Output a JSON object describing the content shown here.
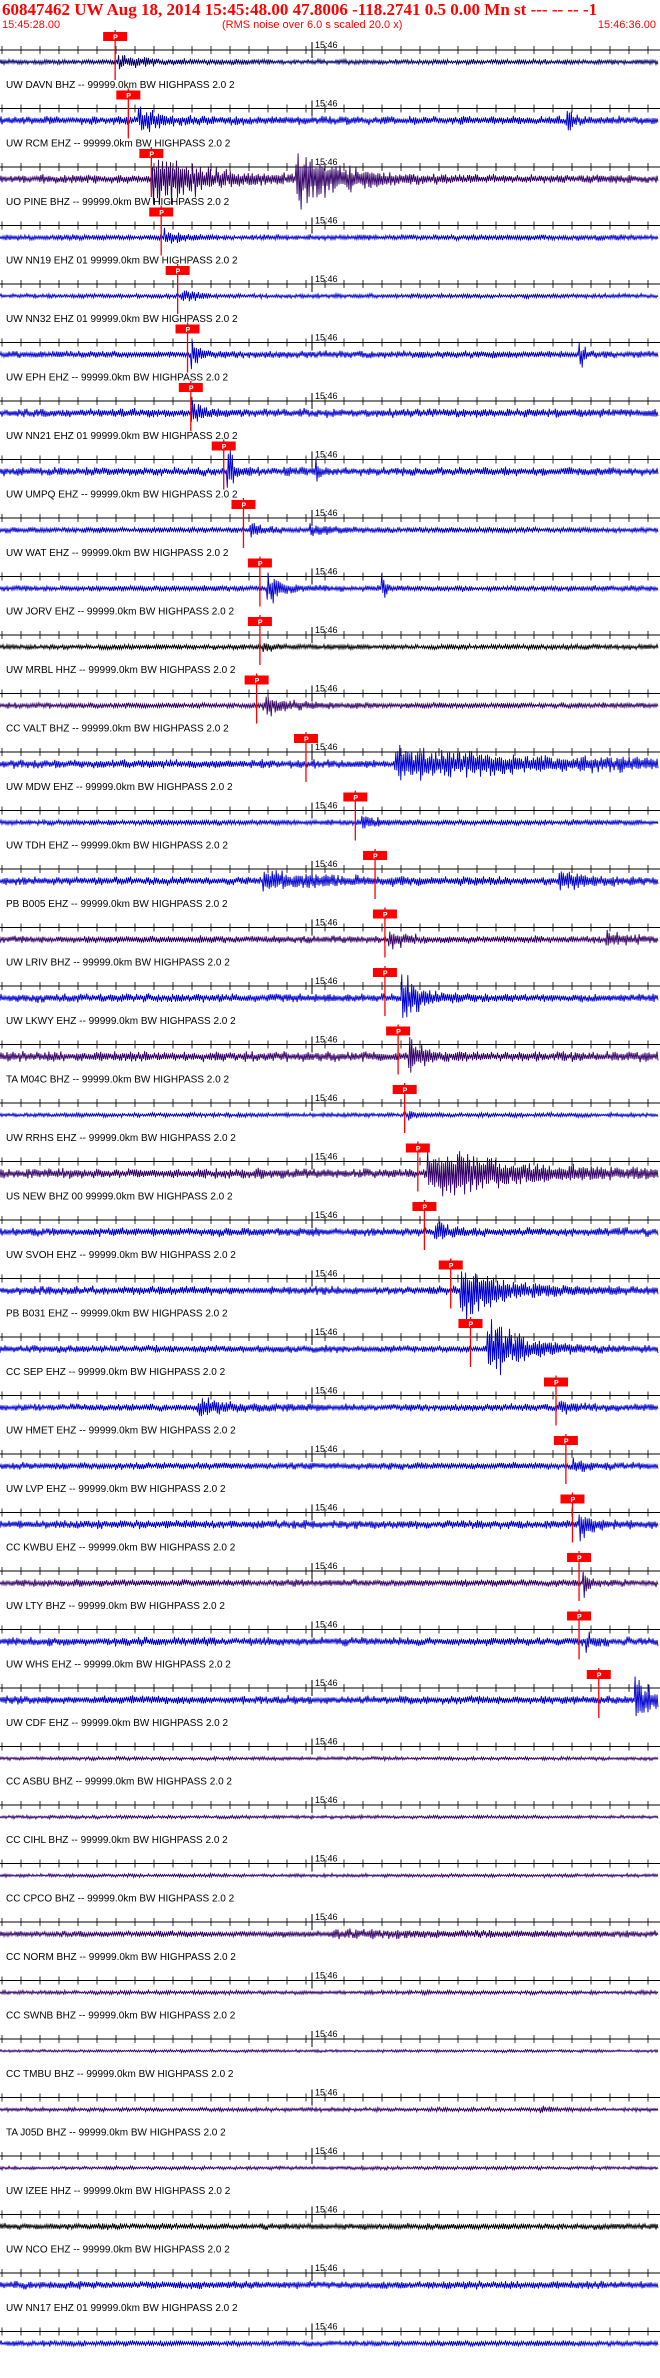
{
  "header": {
    "title": "60847462 UW Aug 18, 2014 15:45:48.00   47.8006 -118.2741  0.5 0.00 Mn st --- -- --  -1",
    "start_time": "15:45:28.00",
    "note": "(RMS noise over 6.0 s scaled 20.0 x)",
    "end_time": "15:46:36.00"
  },
  "chart_data": {
    "type": "line",
    "title": "60847462 UW Aug 18, 2014 15:45:48.00   47.8006 -118.2741  0.5 0.00 Mn st --- -- --  -1",
    "x_range": [
      "15:45:28.00",
      "15:46:36.00"
    ],
    "tick_label": "15:46",
    "pick_box_label": "P",
    "colors": {
      "blue": "#0000cc",
      "navy": "#000066",
      "black": "#000000",
      "indigo": "#330066",
      "pick": "#ff0000",
      "grid": "#000000"
    },
    "traces": [
      {
        "label": "UW DAVN BHZ -- 99999.0km BW  HIGHPASS  2.0  2",
        "color": "navy",
        "amp": 0.18,
        "pick": 0.175,
        "events": [
          {
            "t": 0.18,
            "a": 0.4,
            "d": 0.05
          }
        ]
      },
      {
        "label": "UW RCM EHZ -- 99999.0km BW  HIGHPASS  2.0  2",
        "color": "blue",
        "amp": 0.3,
        "pick": 0.195,
        "events": [
          {
            "t": 0.21,
            "a": 0.9,
            "d": 0.03
          },
          {
            "t": 0.86,
            "a": 0.8,
            "d": 0.01
          }
        ]
      },
      {
        "label": "UO PINE BHZ -- 99999.0km BW  HIGHPASS  2.0  2",
        "color": "indigo",
        "amp": 0.3,
        "pick": 0.23,
        "events": [
          {
            "t": 0.23,
            "a": 1.8,
            "d": 0.08
          },
          {
            "t": 0.45,
            "a": 1.8,
            "d": 0.07
          }
        ]
      },
      {
        "label": "UW NN19 EHZ 01 99999.0km BW  HIGHPASS  2.0  2",
        "color": "blue",
        "amp": 0.2,
        "pick": 0.245,
        "events": [
          {
            "t": 0.25,
            "a": 0.5,
            "d": 0.02
          }
        ]
      },
      {
        "label": "UW NN32 EHZ 01 99999.0km BW  HIGHPASS  2.0  2",
        "color": "blue",
        "amp": 0.15,
        "pick": 0.27,
        "events": [
          {
            "t": 0.275,
            "a": 0.5,
            "d": 0.02
          }
        ]
      },
      {
        "label": "UW EPH EHZ -- 99999.0km BW  HIGHPASS  2.0  2",
        "color": "blue",
        "amp": 0.25,
        "pick": 0.285,
        "events": [
          {
            "t": 0.29,
            "a": 1.5,
            "d": 0.01
          },
          {
            "t": 0.88,
            "a": 1.4,
            "d": 0.006
          }
        ]
      },
      {
        "label": "UW NN21 EHZ 01 99999.0km BW  HIGHPASS  2.0  2",
        "color": "blue",
        "amp": 0.3,
        "pick": 0.29,
        "events": [
          {
            "t": 0.29,
            "a": 1.0,
            "d": 0.015
          }
        ]
      },
      {
        "label": "UW UMPQ EHZ -- 99999.0km BW  HIGHPASS  2.0  2",
        "color": "blue",
        "amp": 0.3,
        "pick": 0.34,
        "events": [
          {
            "t": 0.345,
            "a": 1.8,
            "d": 0.01
          },
          {
            "t": 0.48,
            "a": 0.7,
            "d": 0.005
          }
        ]
      },
      {
        "label": "UW WAT EHZ -- 99999.0km BW  HIGHPASS  2.0  2",
        "color": "blue",
        "amp": 0.2,
        "pick": 0.37,
        "events": [
          {
            "t": 0.38,
            "a": 0.5,
            "d": 0.02
          },
          {
            "t": 0.47,
            "a": 0.4,
            "d": 0.03
          }
        ]
      },
      {
        "label": "UW JORV EHZ -- 99999.0km BW  HIGHPASS  2.0  2",
        "color": "blue",
        "amp": 0.2,
        "pick": 0.395,
        "events": [
          {
            "t": 0.405,
            "a": 1.2,
            "d": 0.02
          },
          {
            "t": 0.58,
            "a": 1.1,
            "d": 0.006
          }
        ]
      },
      {
        "label": "UW MRBL HHZ -- 99999.0km BW  HIGHPASS  2.0  2",
        "color": "black",
        "amp": 0.18,
        "pick": 0.395,
        "events": [
          {
            "t": 0.4,
            "a": 0.3,
            "d": 0.02
          }
        ]
      },
      {
        "label": "CC VALT BHZ -- 99999.0km BW  HIGHPASS  2.0  2",
        "color": "indigo",
        "amp": 0.2,
        "pick": 0.39,
        "events": [
          {
            "t": 0.4,
            "a": 0.7,
            "d": 0.04
          }
        ]
      },
      {
        "label": "UW MDW EHZ -- 99999.0km BW  HIGHPASS  2.0  2",
        "color": "blue",
        "amp": 0.3,
        "pick": 0.465,
        "events": [
          {
            "t": 0.6,
            "a": 1.0,
            "d": 0.25
          }
        ]
      },
      {
        "label": "UW TDH EHZ -- 99999.0km BW  HIGHPASS  2.0  2",
        "color": "blue",
        "amp": 0.2,
        "pick": 0.54,
        "events": [
          {
            "t": 0.55,
            "a": 0.5,
            "d": 0.02
          }
        ]
      },
      {
        "label": "PB B005 EHZ -- 99999.0km BW  HIGHPASS  2.0  2",
        "color": "blue",
        "amp": 0.3,
        "pick": 0.57,
        "events": [
          {
            "t": 0.4,
            "a": 0.6,
            "d": 0.1
          },
          {
            "t": 0.85,
            "a": 0.6,
            "d": 0.05
          }
        ]
      },
      {
        "label": "UW LRIV BHZ -- 99999.0km BW  HIGHPASS  2.0  2",
        "color": "indigo",
        "amp": 0.25,
        "pick": 0.585,
        "events": [
          {
            "t": 0.59,
            "a": 0.8,
            "d": 0.02
          },
          {
            "t": 0.92,
            "a": 0.5,
            "d": 0.03
          }
        ]
      },
      {
        "label": "UW LKWY EHZ -- 99999.0km BW  HIGHPASS  2.0  2",
        "color": "blue",
        "amp": 0.3,
        "pick": 0.585,
        "events": [
          {
            "t": 0.61,
            "a": 1.6,
            "d": 0.03
          }
        ]
      },
      {
        "label": "TA M04C BHZ -- 99999.0km BW  HIGHPASS  2.0  2",
        "color": "indigo",
        "amp": 0.35,
        "pick": 0.605,
        "events": [
          {
            "t": 0.62,
            "a": 1.4,
            "d": 0.02
          }
        ]
      },
      {
        "label": "UW RRHS EHZ -- 99999.0km BW  HIGHPASS  2.0  2",
        "color": "blue",
        "amp": 0.15,
        "pick": 0.615,
        "events": [
          {
            "t": 0.62,
            "a": 0.4,
            "d": 0.01
          }
        ]
      },
      {
        "label": "US NEW BHZ 00 99999.0km BW  HIGHPASS  2.0  2",
        "color": "indigo",
        "amp": 0.35,
        "pick": 0.635,
        "events": [
          {
            "t": 0.65,
            "a": 1.8,
            "d": 0.12
          }
        ]
      },
      {
        "label": "UW SVOH EHZ -- 99999.0km BW  HIGHPASS  2.0  2",
        "color": "blue",
        "amp": 0.3,
        "pick": 0.645,
        "events": [
          {
            "t": 0.66,
            "a": 0.8,
            "d": 0.02
          }
        ]
      },
      {
        "label": "PB B031 EHZ -- 99999.0km BW  HIGHPASS  2.0  2",
        "color": "blue",
        "amp": 0.3,
        "pick": 0.685,
        "events": [
          {
            "t": 0.7,
            "a": 2.0,
            "d": 0.06
          }
        ]
      },
      {
        "label": "CC SEP EHZ -- 99999.0km BW  HIGHPASS  2.0  2",
        "color": "blue",
        "amp": 0.25,
        "pick": 0.715,
        "events": [
          {
            "t": 0.74,
            "a": 2.2,
            "d": 0.05
          }
        ]
      },
      {
        "label": "UW HMET EHZ -- 99999.0km BW  HIGHPASS  2.0  2",
        "color": "blue",
        "amp": 0.25,
        "pick": 0.845,
        "events": [
          {
            "t": 0.3,
            "a": 0.5,
            "d": 0.06
          },
          {
            "t": 0.85,
            "a": 0.6,
            "d": 0.02
          }
        ]
      },
      {
        "label": "UW LVP EHZ -- 99999.0km BW  HIGHPASS  2.0  2",
        "color": "blue",
        "amp": 0.25,
        "pick": 0.86,
        "events": [
          {
            "t": 0.87,
            "a": 0.5,
            "d": 0.02
          }
        ]
      },
      {
        "label": "CC KWBU EHZ -- 99999.0km BW  HIGHPASS  2.0  2",
        "color": "blue",
        "amp": 0.3,
        "pick": 0.87,
        "events": [
          {
            "t": 0.88,
            "a": 1.0,
            "d": 0.02
          }
        ]
      },
      {
        "label": "UW LTY BHZ -- 99999.0km BW  HIGHPASS  2.0  2",
        "color": "indigo",
        "amp": 0.25,
        "pick": 0.88,
        "events": [
          {
            "t": 0.885,
            "a": 1.2,
            "d": 0.008
          }
        ]
      },
      {
        "label": "UW WHS EHZ -- 99999.0km BW  HIGHPASS  2.0  2",
        "color": "blue",
        "amp": 0.3,
        "pick": 0.88,
        "events": [
          {
            "t": 0.89,
            "a": 0.6,
            "d": 0.01
          }
        ]
      },
      {
        "label": "UW CDF EHZ -- 99999.0km BW  HIGHPASS  2.0  2",
        "color": "blue",
        "amp": 0.3,
        "pick": 0.91,
        "events": [
          {
            "t": 0.965,
            "a": 1.8,
            "d": 0.02
          }
        ]
      },
      {
        "label": "CC ASBU BHZ -- 99999.0km BW  HIGHPASS  2.0  2",
        "color": "indigo",
        "amp": 0.12,
        "pick": null,
        "events": []
      },
      {
        "label": "CC CIHL BHZ -- 99999.0km BW  HIGHPASS  2.0  2",
        "color": "indigo",
        "amp": 0.12,
        "pick": null,
        "events": []
      },
      {
        "label": "CC CPCO BHZ -- 99999.0km BW  HIGHPASS  2.0  2",
        "color": "indigo",
        "amp": 0.12,
        "pick": null,
        "events": []
      },
      {
        "label": "CC NORM BHZ -- 99999.0km BW  HIGHPASS  2.0  2",
        "color": "indigo",
        "amp": 0.22,
        "pick": null,
        "events": [
          {
            "t": 0.5,
            "a": 0.2,
            "d": 0.2
          }
        ]
      },
      {
        "label": "CC SWNB BHZ -- 99999.0km BW  HIGHPASS  2.0  2",
        "color": "indigo",
        "amp": 0.14,
        "pick": null,
        "events": []
      },
      {
        "label": "CC TMBU BHZ -- 99999.0km BW  HIGHPASS  2.0  2",
        "color": "indigo",
        "amp": 0.1,
        "pick": null,
        "events": []
      },
      {
        "label": "TA J05D BHZ -- 99999.0km BW  HIGHPASS  2.0  2",
        "color": "indigo",
        "amp": 0.14,
        "pick": null,
        "events": [
          {
            "t": 0.82,
            "a": 0.3,
            "d": 0.01
          }
        ]
      },
      {
        "label": "UW IZEE HHZ -- 99999.0km BW  HIGHPASS  2.0  2",
        "color": "indigo",
        "amp": 0.12,
        "pick": null,
        "events": []
      },
      {
        "label": "UW NCO EHZ -- 99999.0km BW  HIGHPASS  2.0  2",
        "color": "black",
        "amp": 0.22,
        "pick": null,
        "events": []
      },
      {
        "label": "UW NN17 EHZ 01 99999.0km BW  HIGHPASS  2.0  2",
        "color": "blue",
        "amp": 0.28,
        "pick": null,
        "events": []
      },
      {
        "label": "",
        "color": "blue",
        "amp": 0.2,
        "pick": null,
        "events": []
      }
    ]
  }
}
